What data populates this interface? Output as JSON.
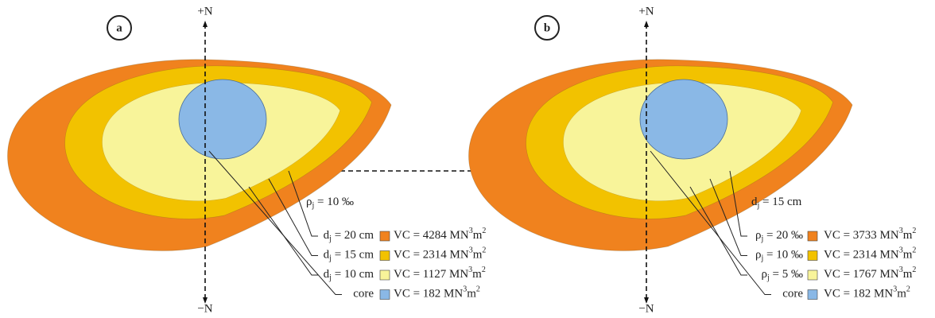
{
  "panels": [
    {
      "label": "a",
      "axis_top": "+N",
      "axis_bottom": "−N",
      "parameter": {
        "base": "ρ",
        "sub": "j",
        "rest": " = 10 ‰"
      },
      "legend": [
        {
          "name": {
            "base": "d",
            "sub": "j",
            "rest": " = 20 cm"
          },
          "vc": {
            "text": "VC = 4284 MN",
            "sup1": "3",
            "mid": "m",
            "sup2": "2"
          },
          "color": "#f0821e"
        },
        {
          "name": {
            "base": "d",
            "sub": "j",
            "rest": " = 15 cm"
          },
          "vc": {
            "text": "VC = 2314 MN",
            "sup1": "3",
            "mid": "m",
            "sup2": "2"
          },
          "color": "#f2c200"
        },
        {
          "name": {
            "base": "d",
            "sub": "j",
            "rest": " = 10 cm"
          },
          "vc": {
            "text": "VC = 1127 MN",
            "sup1": "3",
            "mid": "m",
            "sup2": "2"
          },
          "color": "#f8f49a"
        },
        {
          "name": {
            "base": "core"
          },
          "vc": {
            "text": "VC = 182 MN",
            "sup1": "3",
            "mid": "m",
            "sup2": "2"
          },
          "color": "#8ab8e6"
        }
      ]
    },
    {
      "label": "b",
      "axis_top": "+N",
      "axis_bottom": "−N",
      "parameter": {
        "base": "d",
        "sub": "j",
        "rest": " = 15 cm"
      },
      "legend": [
        {
          "name": {
            "base": "ρ",
            "sub": "j",
            "rest": " = 20 ‰"
          },
          "vc": {
            "text": "VC = 3733 MN",
            "sup1": "3",
            "mid": "m",
            "sup2": "2"
          },
          "color": "#f0821e"
        },
        {
          "name": {
            "base": "ρ",
            "sub": "j",
            "rest": " = 10 ‰"
          },
          "vc": {
            "text": "VC = 2314 MN",
            "sup1": "3",
            "mid": "m",
            "sup2": "2"
          },
          "color": "#f2c200"
        },
        {
          "name": {
            "base": "ρ",
            "sub": "j",
            "rest": " = 5 ‰"
          },
          "vc": {
            "text": "VC = 1767 MN",
            "sup1": "3",
            "mid": "m",
            "sup2": "2"
          },
          "color": "#f8f49a"
        },
        {
          "name": {
            "base": "core"
          },
          "vc": {
            "text": "VC = 182 MN",
            "sup1": "3",
            "mid": "m",
            "sup2": "2"
          },
          "color": "#8ab8e6"
        }
      ]
    }
  ]
}
